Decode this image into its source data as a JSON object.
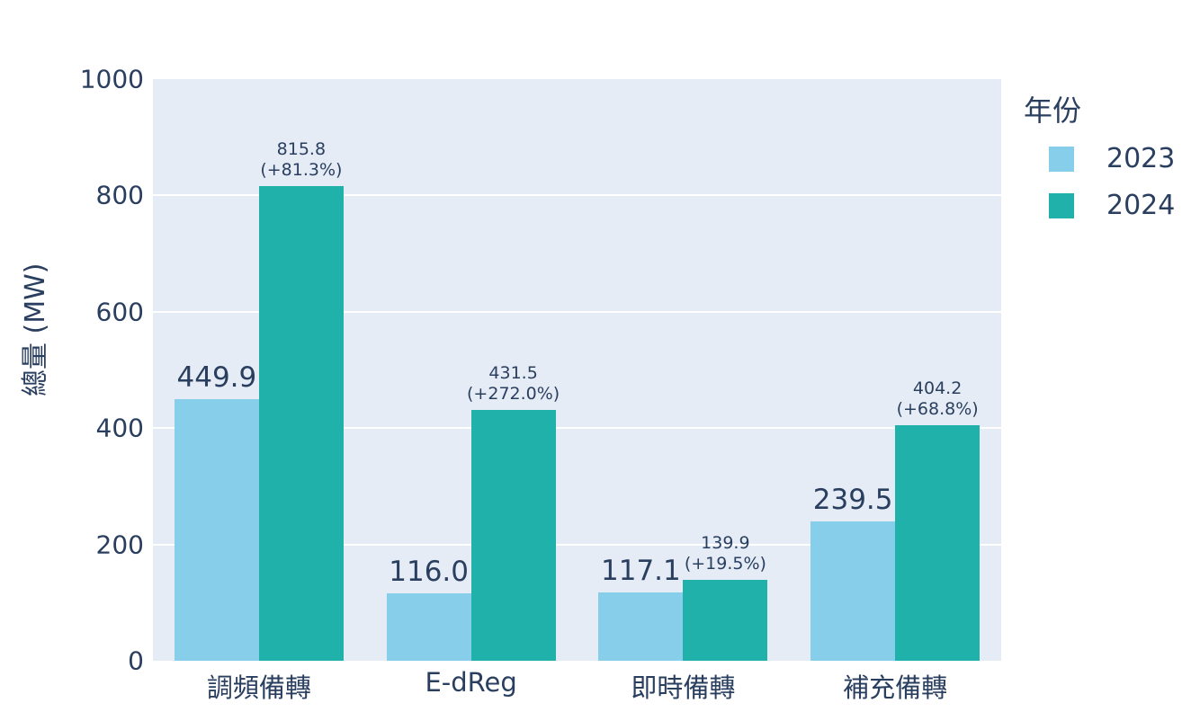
{
  "chart_data": {
    "type": "bar",
    "title": "",
    "xlabel": "",
    "ylabel": "總量 (MW)",
    "categories": [
      "調頻備轉",
      "E-dReg",
      "即時備轉",
      "補充備轉"
    ],
    "series": [
      {
        "name": "2023",
        "color": "#87ceeb",
        "values": [
          449.9,
          116.0,
          117.1,
          239.5
        ],
        "labels": [
          "449.9",
          "116.0",
          "117.1",
          "239.5"
        ],
        "label_style": "large"
      },
      {
        "name": "2024",
        "color": "#20b2aa",
        "values": [
          815.8,
          431.5,
          139.9,
          404.2
        ],
        "labels": [
          "815.8",
          "431.5",
          "139.9",
          "404.2"
        ],
        "sublabels": [
          "(+81.3%)",
          "(+272.0%)",
          "(+19.5%)",
          "(+68.8%)"
        ],
        "label_style": "small"
      }
    ],
    "ylim": [
      0,
      1000
    ],
    "yticks": [
      0,
      200,
      400,
      600,
      800,
      1000
    ],
    "legend": {
      "title": "年份",
      "position": "right-top",
      "entries": [
        "2023",
        "2024"
      ]
    },
    "grid": true,
    "colors": {
      "plot_background": "#e5ecf6",
      "gridline": "#ffffff",
      "text": "#2a3f5f",
      "series_2023": "#87ceeb",
      "series_2024": "#20b2aa"
    }
  }
}
